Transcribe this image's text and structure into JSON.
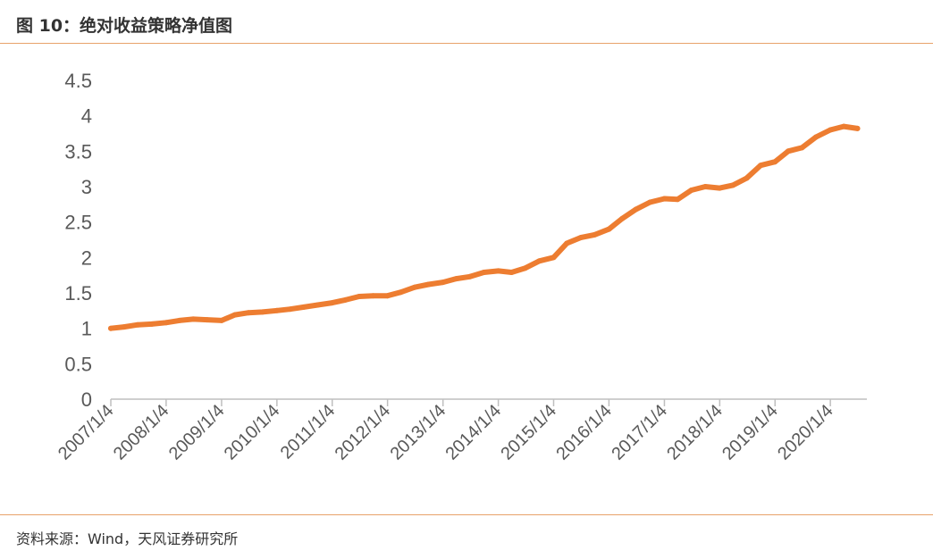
{
  "header": {
    "title": "图 10：绝对收益策略净值图"
  },
  "footer": {
    "source": "资料来源：Wind，天风证券研究所"
  },
  "colors": {
    "accent": "#ED7D31",
    "rule": "#E8A26A",
    "axis": "#BFBFBF",
    "tick_text": "#595959"
  },
  "chart_data": {
    "type": "line",
    "title": "",
    "xlabel": "",
    "ylabel": "",
    "ylim": [
      0,
      4.5
    ],
    "yticks": [
      "0",
      "0.5",
      "1",
      "1.5",
      "2",
      "2.5",
      "3",
      "3.5",
      "4",
      "4.5"
    ],
    "xticks": [
      "2007/1/4",
      "2008/1/4",
      "2009/1/4",
      "2010/1/4",
      "2011/1/4",
      "2012/1/4",
      "2013/1/4",
      "2014/1/4",
      "2015/1/4",
      "2016/1/4",
      "2017/1/4",
      "2018/1/4",
      "2019/1/4",
      "2020/1/4"
    ],
    "grid": false,
    "legend": "none",
    "series": [
      {
        "x": [
          "2007-01-04",
          "2007-04-01",
          "2007-07-01",
          "2007-10-01",
          "2008-01-04",
          "2008-04-01",
          "2008-07-01",
          "2008-10-01",
          "2009-01-04",
          "2009-04-01",
          "2009-07-01",
          "2009-10-01",
          "2010-01-04",
          "2010-04-01",
          "2010-07-01",
          "2010-10-01",
          "2011-01-04",
          "2011-04-01",
          "2011-07-01",
          "2011-10-01",
          "2012-01-04",
          "2012-04-01",
          "2012-07-01",
          "2012-10-01",
          "2013-01-04",
          "2013-04-01",
          "2013-07-01",
          "2013-10-01",
          "2014-01-04",
          "2014-04-01",
          "2014-07-01",
          "2014-10-01",
          "2015-01-04",
          "2015-04-01",
          "2015-07-01",
          "2015-10-01",
          "2016-01-04",
          "2016-04-01",
          "2016-07-01",
          "2016-10-01",
          "2017-01-04",
          "2017-04-01",
          "2017-07-01",
          "2017-10-01",
          "2018-01-04",
          "2018-04-01",
          "2018-07-01",
          "2018-10-01",
          "2019-01-04",
          "2019-04-01",
          "2019-07-01",
          "2019-10-01",
          "2020-01-04",
          "2020-04-01",
          "2020-07-01"
        ],
        "y": [
          1.0,
          1.02,
          1.05,
          1.06,
          1.08,
          1.11,
          1.13,
          1.12,
          1.11,
          1.19,
          1.22,
          1.23,
          1.25,
          1.27,
          1.3,
          1.33,
          1.36,
          1.4,
          1.45,
          1.46,
          1.46,
          1.51,
          1.58,
          1.62,
          1.65,
          1.7,
          1.73,
          1.79,
          1.81,
          1.79,
          1.85,
          1.95,
          2.0,
          2.2,
          2.28,
          2.32,
          2.4,
          2.55,
          2.68,
          2.78,
          2.83,
          2.82,
          2.95,
          3.0,
          2.98,
          3.02,
          3.12,
          3.3,
          3.35,
          3.5,
          3.55,
          3.7,
          3.8,
          3.85,
          3.82
        ]
      }
    ]
  }
}
